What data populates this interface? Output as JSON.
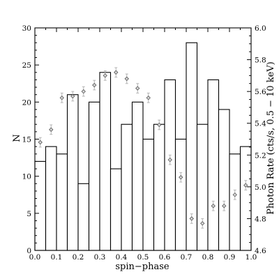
{
  "chart_data": {
    "type": "bar",
    "title": "",
    "xlabel": "spin−phase",
    "ylabel": "N",
    "y2label": "Photon Rate (cts/s, 0.5 − 10 keV)",
    "xlim": [
      0.0,
      1.0
    ],
    "ylim": [
      0,
      30
    ],
    "y2lim": [
      4.6,
      6.0
    ],
    "x_ticks": [
      "0.0",
      "0.1",
      "0.2",
      "0.3",
      "0.4",
      "0.5",
      "0.6",
      "0.7",
      "0.8",
      "0.9",
      "1.0"
    ],
    "y_ticks": [
      "0",
      "5",
      "10",
      "15",
      "20",
      "25",
      "30"
    ],
    "y2_ticks": [
      "4.6",
      "4.8",
      "5.0",
      "5.2",
      "5.4",
      "5.6",
      "5.8",
      "6.0"
    ],
    "histogram": {
      "name": "N",
      "bin_width": 0.05,
      "bin_starts": [
        0.0,
        0.05,
        0.1,
        0.15,
        0.2,
        0.25,
        0.3,
        0.35,
        0.4,
        0.45,
        0.5,
        0.55,
        0.6,
        0.65,
        0.7,
        0.75,
        0.8,
        0.85,
        0.9,
        0.95
      ],
      "values": [
        12,
        14,
        13,
        21,
        9,
        20,
        24,
        11,
        17,
        20,
        15,
        17,
        23,
        15,
        28,
        17,
        23,
        19,
        13,
        14
      ]
    },
    "photon_rate": {
      "axis": "right",
      "marker": "diamond",
      "x": [
        0.025,
        0.075,
        0.125,
        0.175,
        0.225,
        0.275,
        0.325,
        0.375,
        0.425,
        0.475,
        0.525,
        0.575,
        0.625,
        0.675,
        0.725,
        0.775,
        0.825,
        0.875,
        0.925,
        0.975
      ],
      "y": [
        5.28,
        5.36,
        5.56,
        5.57,
        5.6,
        5.64,
        5.7,
        5.72,
        5.68,
        5.62,
        5.56,
        5.39,
        5.17,
        5.06,
        4.8,
        4.77,
        4.88,
        4.88,
        4.95,
        5.01
      ],
      "err": [
        0.03,
        0.03,
        0.03,
        0.03,
        0.03,
        0.03,
        0.03,
        0.03,
        0.03,
        0.03,
        0.03,
        0.03,
        0.03,
        0.03,
        0.03,
        0.03,
        0.03,
        0.03,
        0.03,
        0.03
      ]
    },
    "grid": false,
    "legend": "none"
  }
}
